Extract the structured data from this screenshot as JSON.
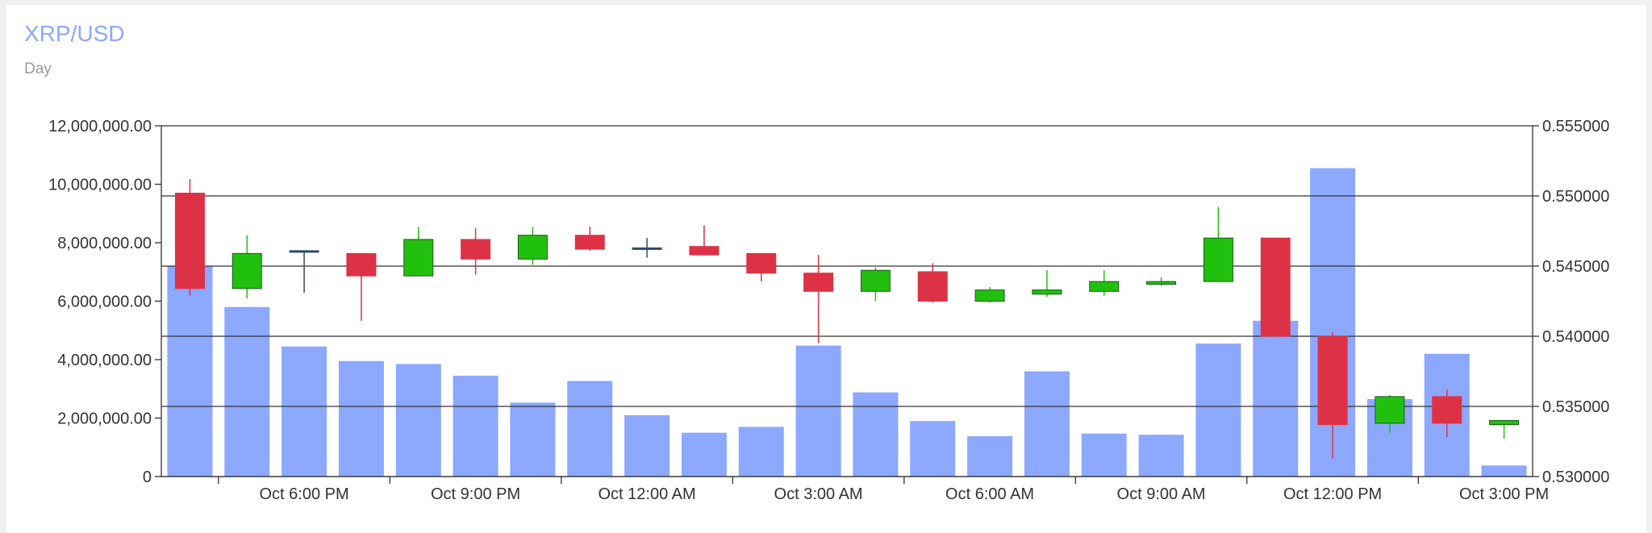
{
  "header": {
    "title": "XRP/USD",
    "subtitle": "Day"
  },
  "colors": {
    "title": "#8ca8ff",
    "volume": "#8ca8ff",
    "up": "#21c00f",
    "down": "#dd3246",
    "doji": "#2f4a68",
    "grid": "#333333"
  },
  "chart_data": {
    "type": "candlestick",
    "title": "XRP/USD",
    "subtitle": "Day",
    "grid": true,
    "x_tick_labels": [
      "Oct 6:00 PM",
      "Oct 9:00 PM",
      "Oct 12:00 AM",
      "Oct 3:00 AM",
      "Oct 6:00 AM",
      "Oct 9:00 AM",
      "Oct 12:00 PM",
      "Oct 3:00 PM"
    ],
    "volume_axis": {
      "side": "left",
      "range": [
        0,
        12000000
      ],
      "tick_labels": [
        "0",
        "2,000,000.00",
        "4,000,000.00",
        "6,000,000.00",
        "8,000,000.00",
        "10,000,000.00",
        "12,000,000.00"
      ]
    },
    "price_axis": {
      "side": "right",
      "range": [
        0.53,
        0.555
      ],
      "tick_labels": [
        "0.530000",
        "0.535000",
        "0.540000",
        "0.545000",
        "0.550000",
        "0.555000"
      ]
    },
    "candles": [
      {
        "open": 0.5502,
        "high": 0.5512,
        "low": 0.5429,
        "close": 0.5434,
        "volume": 7200000
      },
      {
        "open": 0.5434,
        "high": 0.5472,
        "low": 0.5427,
        "close": 0.5459,
        "volume": 5800000
      },
      {
        "open": 0.5461,
        "high": 0.5461,
        "low": 0.5431,
        "close": 0.546,
        "volume": 4450000
      },
      {
        "open": 0.5459,
        "high": 0.5459,
        "low": 0.5411,
        "close": 0.5443,
        "volume": 3950000
      },
      {
        "open": 0.5443,
        "high": 0.5478,
        "low": 0.5443,
        "close": 0.5469,
        "volume": 3850000
      },
      {
        "open": 0.5469,
        "high": 0.5477,
        "low": 0.5444,
        "close": 0.5455,
        "volume": 3450000
      },
      {
        "open": 0.5455,
        "high": 0.5478,
        "low": 0.5451,
        "close": 0.5472,
        "volume": 2530000
      },
      {
        "open": 0.5472,
        "high": 0.5478,
        "low": 0.5461,
        "close": 0.5462,
        "volume": 3270000
      },
      {
        "open": 0.5463,
        "high": 0.547,
        "low": 0.5456,
        "close": 0.5462,
        "volume": 2100000
      },
      {
        "open": 0.5464,
        "high": 0.5479,
        "low": 0.5458,
        "close": 0.5458,
        "volume": 1500000
      },
      {
        "open": 0.5459,
        "high": 0.5459,
        "low": 0.5439,
        "close": 0.5445,
        "volume": 1700000
      },
      {
        "open": 0.5445,
        "high": 0.5458,
        "low": 0.5395,
        "close": 0.5432,
        "volume": 4480000
      },
      {
        "open": 0.5432,
        "high": 0.5449,
        "low": 0.5425,
        "close": 0.5447,
        "volume": 2880000
      },
      {
        "open": 0.5446,
        "high": 0.5452,
        "low": 0.5424,
        "close": 0.5425,
        "volume": 1900000
      },
      {
        "open": 0.5425,
        "high": 0.5435,
        "low": 0.5424,
        "close": 0.5433,
        "volume": 1380000
      },
      {
        "open": 0.543,
        "high": 0.5447,
        "low": 0.5428,
        "close": 0.5433,
        "volume": 3600000
      },
      {
        "open": 0.5432,
        "high": 0.5447,
        "low": 0.5429,
        "close": 0.5439,
        "volume": 1470000
      },
      {
        "open": 0.5437,
        "high": 0.5442,
        "low": 0.5436,
        "close": 0.5439,
        "volume": 1430000
      },
      {
        "open": 0.5439,
        "high": 0.5492,
        "low": 0.5439,
        "close": 0.547,
        "volume": 4550000
      },
      {
        "open": 0.547,
        "high": 0.547,
        "low": 0.54,
        "close": 0.54,
        "volume": 5330000
      },
      {
        "open": 0.54,
        "high": 0.5403,
        "low": 0.5313,
        "close": 0.5337,
        "volume": 10550000
      },
      {
        "open": 0.5338,
        "high": 0.5358,
        "low": 0.5331,
        "close": 0.5357,
        "volume": 2650000
      },
      {
        "open": 0.5357,
        "high": 0.5362,
        "low": 0.5328,
        "close": 0.5338,
        "volume": 4200000
      },
      {
        "open": 0.5337,
        "high": 0.534,
        "low": 0.5327,
        "close": 0.534,
        "volume": 380000
      }
    ]
  }
}
